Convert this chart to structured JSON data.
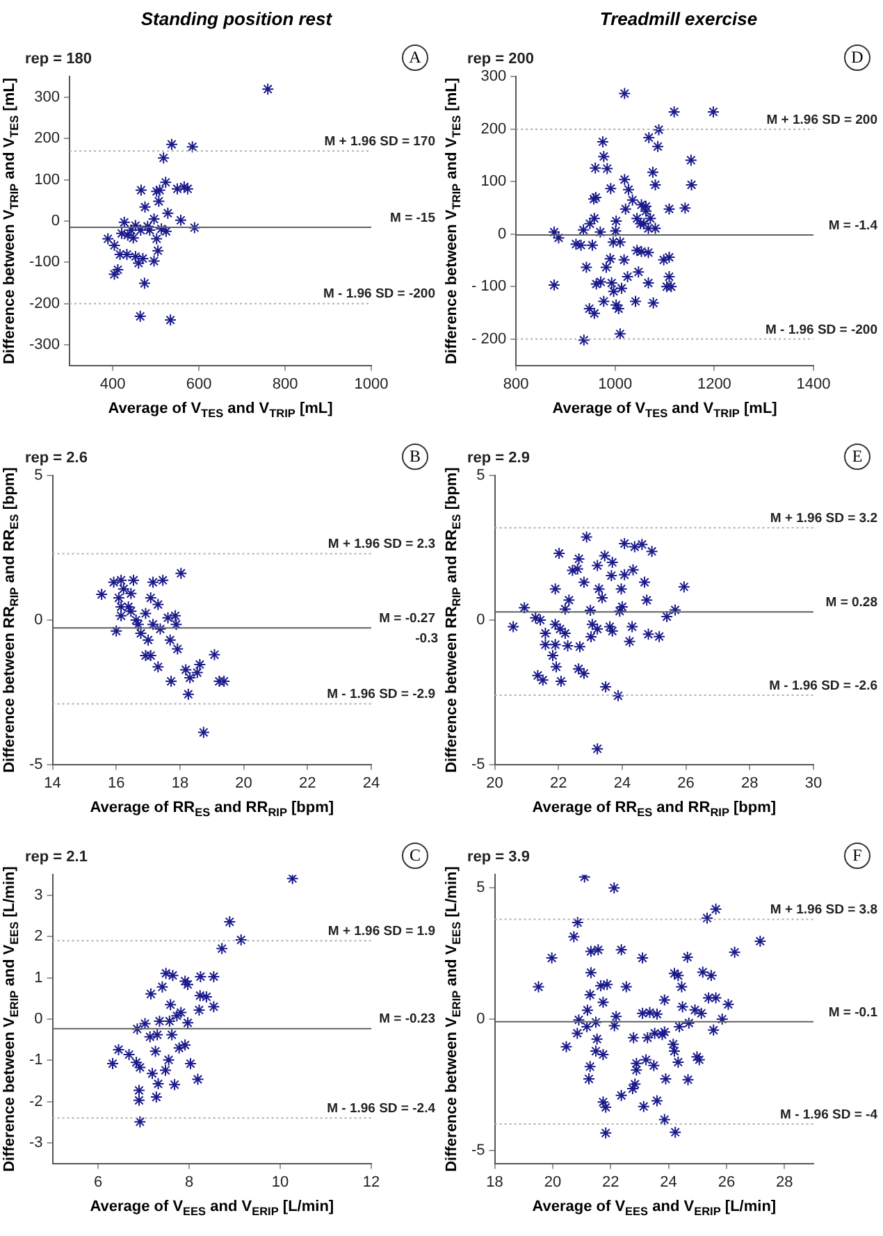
{
  "chart_data": [
    {
      "type": "scatter",
      "subtitle": "Standing position rest",
      "title": "rep = 180",
      "xlabel": "Average of V$_{T}$$_{ES}$ and V$_{T}$$_{RIP}$ [mL]",
      "ylabel": "Difference between V$_{T}$$_{RIP}$ and V$_{T}$$_{ES}$ [mL]",
      "annotations": [
        "A"
      ],
      "marker": "cross",
      "color": "#1a1a8c",
      "x": [
        760,
        537,
        585,
        518,
        523,
        509,
        502,
        466,
        550,
        566,
        574,
        475,
        507,
        528,
        496,
        558,
        590,
        427,
        421,
        453,
        443,
        486,
        513,
        465,
        502,
        389,
        404,
        417,
        505,
        433,
        453,
        470,
        460,
        496,
        412,
        404,
        474,
        464,
        534,
        435,
        481,
        448,
        524
      ],
      "values": [
        320,
        186,
        180,
        153,
        94,
        75,
        72,
        75,
        78,
        83,
        78,
        34,
        48,
        19,
        5,
        2,
        -16,
        -3,
        -30,
        -11,
        -22,
        -22,
        -19,
        -22,
        -43,
        -43,
        -59,
        -81,
        -72,
        -81,
        -86,
        -91,
        -102,
        -97,
        -118,
        -129,
        -151,
        -231,
        -240,
        -34,
        -13,
        -41,
        -25
      ],
      "xlim": [
        300,
        1000
      ],
      "xticks": [
        400,
        600,
        800,
        1000
      ],
      "ylim": [
        -350,
        350
      ],
      "yticks": [
        -300,
        -200,
        -100,
        0,
        100,
        200,
        300
      ],
      "ref_lines": [
        {
          "axis": "y",
          "value": 170,
          "label": "M + 1.96 SD = 170",
          "color": "#b0b0b0",
          "line_style": "dotted"
        },
        {
          "axis": "y",
          "value": -15,
          "label": "M = -15",
          "color": "#606060",
          "line_style": "solid"
        },
        {
          "axis": "y",
          "value": -200,
          "label": "M - 1.96 SD = -200",
          "color": "#b0b0b0",
          "line_style": "dotted"
        }
      ]
    },
    {
      "type": "scatter",
      "subtitle": "Treadmill exercise",
      "title": "rep = 200",
      "xlabel": "Average of V$_{T}$$_{ES}$ and V$_{T}$$_{RIP}$ [mL]",
      "ylabel": "Difference between V$_{T}$$_{RIP}$ and V$_{T}$$_{ES}$ [mL]",
      "annotations": [
        "D"
      ],
      "marker": "cross",
      "color": "#1a1a8c",
      "x": [
        1019,
        1119,
        1198,
        1088,
        1068,
        1086,
        975,
        977,
        984,
        960,
        991,
        1019,
        1027,
        1076,
        1081,
        1153,
        1154,
        1109,
        1141,
        957,
        961,
        1035,
        1021,
        1053,
        1062,
        1044,
        1051,
        1062,
        1071,
        1081,
        1067,
        1058,
        958,
        949,
        936,
        970,
        1001,
        1002,
        877,
        886,
        931,
        954,
        996,
        1010,
        1018,
        1044,
        1053,
        1067,
        1098,
        1109,
        990,
        982,
        942,
        971,
        962,
        993,
        1025,
        1047,
        1067,
        877,
        997,
        1013,
        1104,
        1113,
        1109,
        977,
        1002,
        1041,
        1077,
        948,
        958,
        1007,
        937,
        1010,
        921
      ],
      "values": [
        268,
        233,
        233,
        199,
        184,
        167,
        176,
        148,
        125,
        126,
        87,
        104,
        85,
        118,
        94,
        141,
        94,
        48,
        50,
        67,
        70,
        65,
        48,
        56,
        53,
        30,
        20,
        44,
        30,
        11,
        11,
        20,
        30,
        20,
        8,
        4,
        6,
        25,
        4,
        -7,
        -21,
        -21,
        -15,
        -15,
        -49,
        -31,
        -33,
        -35,
        -49,
        -44,
        -47,
        -63,
        -63,
        -91,
        -95,
        -93,
        -81,
        -72,
        -93,
        -97,
        -109,
        -103,
        -100,
        -100,
        -81,
        -128,
        -135,
        -128,
        -131,
        -142,
        -151,
        -142,
        -202,
        -190,
        -19
      ],
      "xlim": [
        800,
        1400
      ],
      "xticks": [
        800,
        1000,
        1200,
        1400
      ],
      "ylim": [
        -250,
        300
      ],
      "yticks": [
        {
          "value": -200,
          "label": "- 200"
        },
        {
          "value": -100,
          "label": "- 100"
        },
        0,
        100,
        200,
        300
      ],
      "ref_lines": [
        {
          "axis": "y",
          "value": 200,
          "label": "M + 1.96 SD = 200",
          "color": "#b0b0b0",
          "line_style": "dotted"
        },
        {
          "axis": "y",
          "value": -1.4,
          "label": "M = -1.4",
          "color": "#606060",
          "line_style": "solid"
        },
        {
          "axis": "y",
          "value": -200,
          "label": "M - 1.96 SD = -200",
          "color": "#b0b0b0",
          "line_style": "dotted"
        }
      ]
    },
    {
      "type": "scatter",
      "title": "rep = 2.6",
      "xlabel": "Average of RR$_{ES}$ and RR$_{RIP}$ [bpm]",
      "ylabel": "Difference between RR$_{RIP}$ and RR$_{ES}$ [bpm]",
      "annotations": [
        "B",
        "-0.3"
      ],
      "marker": "cross",
      "color": "#1a1a8c",
      "x": [
        18.03,
        15.54,
        16.15,
        16.54,
        15.92,
        17.15,
        17.46,
        17.08,
        17.31,
        16.08,
        16.15,
        16.38,
        16.15,
        16.46,
        16.62,
        16.69,
        16.0,
        16.77,
        17.15,
        17.38,
        17.85,
        17.88,
        17.62,
        17.0,
        17.69,
        17.92,
        16.92,
        17.08,
        17.31,
        18.18,
        18.62,
        19.08,
        18.54,
        18.31,
        17.72,
        19.23,
        19.38,
        18.26,
        18.74,
        16.23,
        16.46,
        16.92
      ],
      "values": [
        1.62,
        0.89,
        1.38,
        1.38,
        1.31,
        1.31,
        1.38,
        0.77,
        0.54,
        0.77,
        0.46,
        0.46,
        0.15,
        0.31,
        0,
        -0.15,
        -0.38,
        -0.46,
        -0.15,
        -0.31,
        0.15,
        -0.15,
        0.08,
        -0.69,
        -0.69,
        -1.0,
        -1.23,
        -1.23,
        -1.62,
        -1.72,
        -1.54,
        -1.2,
        -1.82,
        -2.0,
        -2.12,
        -2.12,
        -2.12,
        -2.57,
        -3.89,
        1.08,
        0.92,
        0.23
      ],
      "xlim": [
        14,
        24
      ],
      "xticks": [
        14,
        16,
        18,
        20,
        22,
        24
      ],
      "ylim": [
        -5,
        5
      ],
      "yticks": [
        -5,
        0,
        5
      ],
      "ref_lines": [
        {
          "axis": "y",
          "value": 2.3,
          "label": "M + 1.96 SD = 2.3",
          "color": "#b0b0b0",
          "line_style": "dotted"
        },
        {
          "axis": "y",
          "value": -0.27,
          "label": "M = -0.27",
          "color": "#606060",
          "line_style": "solid"
        },
        {
          "axis": "y",
          "value": -2.9,
          "label": "M - 1.96 SD = -2.9",
          "color": "#b0b0b0",
          "line_style": "dotted"
        }
      ]
    },
    {
      "type": "scatter",
      "title": "rep = 2.9",
      "xlabel": "Average of RR$_{ES}$ and RR$_{RIP}$ [bpm]",
      "ylabel": "Difference between RR$_{RIP}$ and RR$_{ES}$ [bpm]",
      "annotations": [
        "E"
      ],
      "marker": "cross",
      "color": "#1a1a8c",
      "x": [
        22.88,
        24.07,
        24.62,
        24.39,
        24.93,
        22.02,
        22.64,
        23.45,
        23.69,
        23.22,
        22.44,
        22.6,
        24.34,
        23.66,
        24.07,
        22.8,
        24.7,
        25.94,
        21.9,
        23.27,
        23.97,
        22.33,
        23.37,
        24.77,
        20.93,
        22.21,
        23.0,
        23.92,
        24.0,
        25.66,
        25.4,
        21.28,
        21.43,
        20.58,
        21.9,
        22.05,
        22.21,
        21.59,
        23.06,
        23.22,
        23.61,
        23.69,
        24.31,
        23.02,
        24.82,
        25.16,
        21.59,
        21.9,
        22.29,
        22.67,
        24.23,
        21.82,
        21.93,
        22.63,
        22.8,
        21.35,
        21.51,
        22.08,
        23.48,
        23.87,
        23.22
      ],
      "values": [
        2.88,
        2.65,
        2.62,
        2.54,
        2.38,
        2.31,
        2.12,
        2.23,
        2.0,
        1.89,
        1.72,
        1.77,
        1.74,
        1.54,
        1.57,
        1.31,
        1.31,
        1.15,
        1.08,
        1.08,
        1.08,
        0.69,
        0.77,
        0.69,
        0.43,
        0.38,
        0.34,
        0.31,
        0.46,
        0.35,
        0.12,
        0.08,
        0,
        -0.23,
        -0.15,
        -0.31,
        -0.46,
        -0.46,
        -0.15,
        -0.31,
        -0.23,
        -0.38,
        -0.23,
        -0.58,
        -0.49,
        -0.57,
        -0.85,
        -0.85,
        -0.89,
        -0.92,
        -0.74,
        -1.23,
        -1.62,
        -1.69,
        -1.85,
        -1.92,
        -2.08,
        -2.12,
        -2.31,
        -2.62,
        -4.46
      ],
      "xlim": [
        20,
        30
      ],
      "xticks": [
        20,
        22,
        24,
        26,
        28,
        30
      ],
      "ylim": [
        -5,
        5
      ],
      "yticks": [
        -5,
        0,
        5
      ],
      "ref_lines": [
        {
          "axis": "y",
          "value": 3.2,
          "label": "M + 1.96 SD = 3.2",
          "color": "#b0b0b0",
          "line_style": "dotted"
        },
        {
          "axis": "y",
          "value": 0.28,
          "label": "M = 0.28",
          "color": "#606060",
          "line_style": "solid"
        },
        {
          "axis": "y",
          "value": -2.6,
          "label": "M - 1.96 SD = -2.6",
          "color": "#b0b0b0",
          "line_style": "dotted"
        }
      ]
    },
    {
      "type": "scatter",
      "title": "rep = 2.1",
      "xlabel": "Average of  V$_{E}$$_{ES}$ and  V$_{E}$$_{RIP}$ [L/min]",
      "ylabel": "Difference between V$_{E}$$_{RIP}$ and V$_{E}$$_{ES}$ [L/min]",
      "annotations": [
        "C"
      ],
      "marker": "cross",
      "color": "#1a1a8c",
      "x": [
        10.27,
        8.89,
        9.14,
        8.72,
        7.49,
        7.64,
        8.25,
        8.54,
        7.91,
        7.97,
        7.41,
        7.16,
        8.24,
        8.38,
        7.59,
        8.54,
        8.22,
        7.82,
        7.73,
        7.35,
        7.57,
        7.03,
        7.97,
        6.86,
        7.14,
        7.3,
        7.62,
        6.45,
        7.26,
        7.78,
        7.91,
        6.68,
        6.84,
        6.32,
        7.55,
        6.92,
        8.03,
        7.48,
        7.19,
        8.19,
        7.32,
        7.68,
        6.9,
        6.9,
        7.28,
        6.92
      ],
      "values": [
        3.41,
        2.36,
        1.92,
        1.71,
        1.11,
        1.06,
        1.03,
        1.03,
        0.92,
        0.84,
        0.78,
        0.61,
        0.57,
        0.54,
        0.35,
        0.3,
        0.22,
        0.16,
        0.08,
        -0.05,
        -0.05,
        -0.11,
        -0.09,
        -0.24,
        -0.43,
        -0.38,
        -0.38,
        -0.74,
        -0.78,
        -0.7,
        -0.63,
        -0.86,
        -1.05,
        -1.08,
        -0.99,
        -1.17,
        -1.08,
        -1.24,
        -1.32,
        -1.46,
        -1.57,
        -1.59,
        -1.73,
        -1.97,
        -1.89,
        -2.49
      ],
      "xlim": [
        5,
        12
      ],
      "xticks": [
        6,
        8,
        10,
        12
      ],
      "ylim": [
        -3.5,
        3.5
      ],
      "yticks": [
        -3,
        -2,
        -1,
        0,
        1,
        2,
        3
      ],
      "ref_lines": [
        {
          "axis": "y",
          "value": 1.9,
          "label": "M + 1.96 SD = 1.9",
          "color": "#b0b0b0",
          "line_style": "dotted"
        },
        {
          "axis": "y",
          "value": -0.23,
          "label": "M = -0.23",
          "color": "#606060",
          "line_style": "solid"
        },
        {
          "axis": "y",
          "value": -2.4,
          "label": "M - 1.96 SD = -2.4",
          "color": "#b0b0b0",
          "line_style": "dotted"
        }
      ]
    },
    {
      "type": "scatter",
      "title": "rep = 3.9",
      "xlabel": "Average of  V$_{E}$$_{ES}$ and  V$_{E}$$_{RIP}$ [L/min]",
      "ylabel": "Difference between V$_{E}$$_{RIP}$ and V$_{E}$$_{ES}$ [L/min]",
      "annotations": [
        "F"
      ],
      "marker": "cross",
      "color": "#1a1a8c",
      "x": [
        21.1,
        22.12,
        25.63,
        25.33,
        20.86,
        20.73,
        27.16,
        26.28,
        19.97,
        21.32,
        21.57,
        22.37,
        23.1,
        24.65,
        21.32,
        24.2,
        24.33,
        25.18,
        25.47,
        19.51,
        21.66,
        21.88,
        22.54,
        24.45,
        21.29,
        23.86,
        25.38,
        25.63,
        21.74,
        26.06,
        21.2,
        23.1,
        23.35,
        23.6,
        22.19,
        24.91,
        25.13,
        24.48,
        20.9,
        25.85,
        21.49,
        22.13,
        21.18,
        24.37,
        24.7,
        20.85,
        25.55,
        23.52,
        23.78,
        23.86,
        23.27,
        22.79,
        20.47,
        21.53,
        24.16,
        24.2,
        21.49,
        21.74,
        24.98,
        25.06,
        24.33,
        21.29,
        22.89,
        23.22,
        23.49,
        22.89,
        21.25,
        23.9,
        24.67,
        22.84,
        22.76,
        22.37,
        21.74,
        23.6,
        23.14,
        21.83,
        23.86,
        21.83,
        24.23
      ],
      "values": [
        5.42,
        5.0,
        4.19,
        3.85,
        3.68,
        3.14,
        2.97,
        2.55,
        2.33,
        2.58,
        2.64,
        2.64,
        2.33,
        2.36,
        1.77,
        1.74,
        1.66,
        1.79,
        1.66,
        1.23,
        1.27,
        1.32,
        1.23,
        1.23,
        0.93,
        0.73,
        0.81,
        0.81,
        0.64,
        0.56,
        0.34,
        0.22,
        0.25,
        0.19,
        0.1,
        0.35,
        0.22,
        0.47,
        -0.03,
        0,
        -0.12,
        -0.25,
        -0.29,
        -0.29,
        -0.15,
        -0.54,
        -0.42,
        -0.54,
        -0.59,
        -0.49,
        -0.71,
        -0.71,
        -1.05,
        -0.76,
        -0.96,
        -1.22,
        -1.22,
        -1.35,
        -1.44,
        -1.55,
        -1.64,
        -1.81,
        -1.69,
        -1.55,
        -1.77,
        -1.94,
        -2.28,
        -2.28,
        -2.31,
        -2.48,
        -2.65,
        -2.91,
        -3.16,
        -3.11,
        -3.33,
        -3.36,
        -3.83,
        -4.34,
        -4.31
      ],
      "xlim": [
        18,
        29
      ],
      "xticks": [
        18,
        20,
        22,
        24,
        26,
        28
      ],
      "ylim": [
        -5.5,
        5.5
      ],
      "yticks": [
        -5,
        0,
        5
      ],
      "ref_lines": [
        {
          "axis": "y",
          "value": 3.8,
          "label": "M + 1.96 SD = 3.8",
          "color": "#b0b0b0",
          "line_style": "dotted"
        },
        {
          "axis": "y",
          "value": -0.1,
          "label": "M = -0.1",
          "color": "#606060",
          "line_style": "solid"
        },
        {
          "axis": "y",
          "value": -4,
          "label": "M - 1.96 SD = -4",
          "color": "#b0b0b0",
          "line_style": "dotted"
        }
      ]
    }
  ]
}
